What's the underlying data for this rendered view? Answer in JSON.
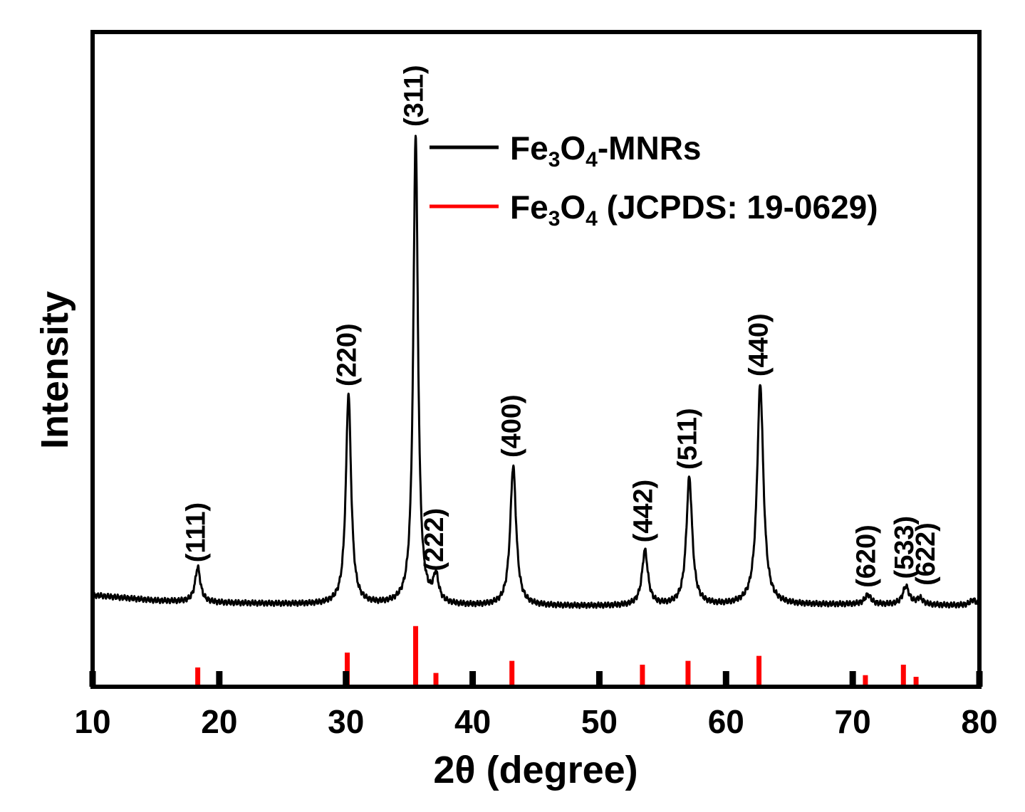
{
  "chart_data": {
    "type": "line",
    "xlabel": "2θ (degree)",
    "ylabel": "Intensity",
    "xlim": [
      10,
      80
    ],
    "xticks": [
      10,
      20,
      30,
      40,
      50,
      60,
      70,
      80
    ],
    "xtick_labels": [
      "10",
      "20",
      "30",
      "40",
      "50",
      "60",
      "70",
      "80"
    ],
    "ylim": [
      0,
      1
    ],
    "grid": false,
    "legend_placement": "top-right",
    "series": [
      {
        "name": "Fe3O4-MNRs",
        "legend": {
          "base": "Fe",
          "sub1": "3",
          "mid": "O",
          "sub2": "4",
          "suffix": "-MNRs"
        },
        "color": "#000000",
        "style": "line",
        "baseline_points": [
          [
            10,
            0.166
          ],
          [
            15,
            0.156
          ],
          [
            20,
            0.152
          ],
          [
            30,
            0.148
          ],
          [
            40,
            0.146
          ],
          [
            50,
            0.146
          ],
          [
            60,
            0.147
          ],
          [
            70,
            0.149
          ],
          [
            80,
            0.147
          ]
        ],
        "peaks": [
          {
            "two_theta": 18.3,
            "intensity": 0.21,
            "width": 0.25
          },
          {
            "two_theta": 30.2,
            "intensity": 0.529,
            "width": 0.25
          },
          {
            "two_theta": 35.5,
            "intensity": 1.0,
            "width": 0.22
          },
          {
            "two_theta": 37.1,
            "intensity": 0.194,
            "width": 0.25
          },
          {
            "two_theta": 43.2,
            "intensity": 0.4,
            "width": 0.28
          },
          {
            "two_theta": 53.6,
            "intensity": 0.246,
            "width": 0.28
          },
          {
            "two_theta": 57.1,
            "intensity": 0.378,
            "width": 0.28
          },
          {
            "two_theta": 62.7,
            "intensity": 0.547,
            "width": 0.3
          },
          {
            "two_theta": 71.2,
            "intensity": 0.164,
            "width": 0.3
          },
          {
            "two_theta": 74.2,
            "intensity": 0.18,
            "width": 0.3
          },
          {
            "two_theta": 75.3,
            "intensity": 0.158,
            "width": 0.3
          },
          {
            "two_theta": 79.5,
            "intensity": 0.157,
            "width": 0.3
          }
        ]
      },
      {
        "name": "Fe3O4 (JCPDS: 19-0629)",
        "legend": {
          "base": "Fe",
          "sub1": "3",
          "mid": "O",
          "sub2": "4",
          "suffix": " (JCPDS: 19-0629)"
        },
        "color": "#ff0000",
        "style": "stick",
        "points": [
          {
            "two_theta": 18.3,
            "intensity": 0.035
          },
          {
            "two_theta": 30.1,
            "intensity": 0.062
          },
          {
            "two_theta": 35.5,
            "intensity": 0.11
          },
          {
            "two_theta": 37.1,
            "intensity": 0.025
          },
          {
            "two_theta": 43.1,
            "intensity": 0.047
          },
          {
            "two_theta": 53.4,
            "intensity": 0.04
          },
          {
            "two_theta": 57.0,
            "intensity": 0.047
          },
          {
            "two_theta": 62.6,
            "intensity": 0.056
          },
          {
            "two_theta": 71.0,
            "intensity": 0.021
          },
          {
            "two_theta": 74.0,
            "intensity": 0.04
          },
          {
            "two_theta": 75.0,
            "intensity": 0.018
          }
        ]
      }
    ],
    "annotations": [
      {
        "text": "(111)",
        "two_theta": 18.3
      },
      {
        "text": "(220)",
        "two_theta": 30.2
      },
      {
        "text": "(311)",
        "two_theta": 35.5
      },
      {
        "text": "(222)",
        "two_theta": 37.1
      },
      {
        "text": "(400)",
        "two_theta": 43.2
      },
      {
        "text": "(442)",
        "two_theta": 53.6
      },
      {
        "text": "(511)",
        "two_theta": 57.1
      },
      {
        "text": "(440)",
        "two_theta": 62.7
      },
      {
        "text": "(620)",
        "two_theta": 71.2
      },
      {
        "text": "(533)",
        "two_theta": 74.2
      },
      {
        "text": "(622)",
        "two_theta": 75.9
      }
    ]
  }
}
